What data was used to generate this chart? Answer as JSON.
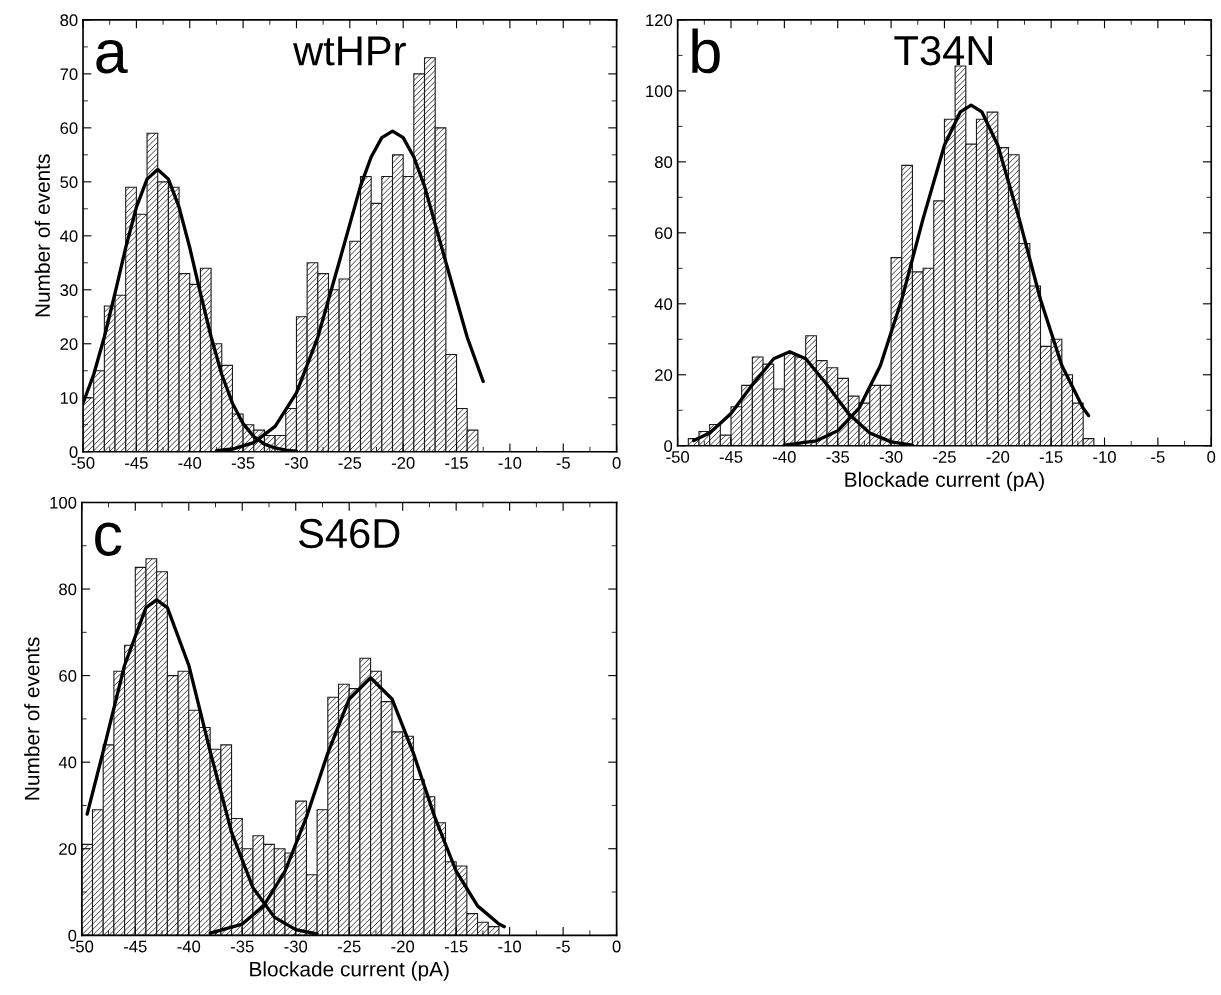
{
  "chart_data": [
    {
      "type": "histogram",
      "title": "wtHPr",
      "ylabel": "Number of events",
      "annotations": [
        "a"
      ],
      "color": "#1a1a1a",
      "bins": [
        -50,
        -49,
        -48,
        -47,
        -46,
        -45,
        -44,
        -43,
        -42,
        -41,
        -40,
        -39,
        -38,
        -37,
        -36,
        -35,
        -34,
        -33,
        -32,
        -31,
        -30,
        -29,
        -28,
        -27,
        -26,
        -25,
        -24,
        -23,
        -22,
        -21,
        -20,
        -19,
        -18,
        -17,
        -16,
        -15,
        -14,
        -13
      ],
      "values": [
        10,
        15,
        27,
        29,
        49,
        44,
        59,
        50,
        49,
        33,
        31,
        34,
        20,
        16,
        7,
        5,
        4,
        3,
        3,
        8,
        25,
        35,
        33,
        30,
        32,
        39,
        51,
        46,
        51,
        55,
        51,
        70,
        73,
        60,
        18,
        8,
        4
      ],
      "series": [
        {
          "type": "line",
          "color": "#000000",
          "x": [
            -50,
            -49,
            -48,
            -47,
            -46,
            -45,
            -44,
            -43,
            -42,
            -41,
            -40,
            -39,
            -38,
            -37,
            -36,
            -35,
            -34,
            -33,
            -32,
            -31,
            -30
          ],
          "values": [
            9.0,
            14.3,
            21.3,
            29.4,
            37.8,
            45.3,
            50.5,
            52.3,
            50.5,
            45.3,
            37.8,
            29.4,
            21.3,
            14.3,
            9.0,
            5.2,
            2.8,
            1.4,
            0.7,
            0.3,
            0.1
          ]
        },
        {
          "type": "line",
          "color": "#000000",
          "x": [
            -37.5,
            -36,
            -34,
            -32,
            -30,
            -28,
            -26,
            -24,
            -23,
            -22,
            -21,
            -20,
            -19,
            -18,
            -16,
            -14,
            -12.5
          ],
          "values": [
            0.2,
            0.5,
            1.7,
            4.7,
            10.9,
            21.2,
            35.1,
            49.2,
            54.6,
            58.2,
            59.4,
            58.2,
            54.6,
            49.2,
            35.1,
            21.2,
            13.0
          ]
        }
      ],
      "xlim": [
        -50,
        0
      ],
      "xticks": [
        -50,
        -45,
        -40,
        -35,
        -30,
        -25,
        -20,
        -15,
        -10,
        -5,
        0
      ],
      "ylim": [
        0,
        80
      ],
      "yticks": [
        0,
        10,
        20,
        30,
        40,
        50,
        60,
        70,
        80
      ],
      "grid": false
    },
    {
      "type": "histogram",
      "title": "T34N",
      "xlabel": "Blockade current (pA)",
      "annotations": [
        "b"
      ],
      "color": "#1a1a1a",
      "bins": [
        -49,
        -48,
        -47,
        -46,
        -45,
        -44,
        -43,
        -42,
        -41,
        -40,
        -39,
        -38,
        -37,
        -36,
        -35,
        -34,
        -33,
        -32,
        -31,
        -30,
        -29,
        -28,
        -27,
        -26,
        -25,
        -24,
        -23,
        -22,
        -21,
        -20,
        -19,
        -18,
        -17,
        -16,
        -15,
        -14,
        -13,
        -12,
        -11
      ],
      "values": [
        2,
        4,
        6,
        3,
        11,
        17,
        25,
        23,
        16,
        26,
        25,
        31,
        24,
        22,
        19,
        14,
        12,
        17,
        17,
        53,
        79,
        49,
        50,
        69,
        92,
        107,
        85,
        92,
        94,
        84,
        82,
        57,
        45,
        28,
        30,
        20,
        12,
        2
      ],
      "series": [
        {
          "type": "line",
          "color": "#000000",
          "x": [
            -48.5,
            -47,
            -45,
            -43,
            -41,
            -39.5,
            -38,
            -36,
            -34,
            -32,
            -30,
            -28
          ],
          "values": [
            1.5,
            3.6,
            9.1,
            17.2,
            24.5,
            26.5,
            24.5,
            17.2,
            9.1,
            3.6,
            1.1,
            0.2
          ]
        },
        {
          "type": "line",
          "color": "#000000",
          "x": [
            -40,
            -37,
            -35,
            -33,
            -31,
            -29,
            -27,
            -25,
            -23.5,
            -22.5,
            -21.5,
            -20,
            -18,
            -16,
            -14,
            -12,
            -11.5
          ],
          "values": [
            0.2,
            1.4,
            4.2,
            10.6,
            22.6,
            41.2,
            64.0,
            84.7,
            94.1,
            96,
            94.1,
            84.7,
            64.0,
            41.2,
            22.6,
            10.6,
            8.5
          ]
        }
      ],
      "xlim": [
        -50,
        0
      ],
      "xticks": [
        -50,
        -45,
        -40,
        -35,
        -30,
        -25,
        -20,
        -15,
        -10,
        -5,
        0
      ],
      "ylim": [
        0,
        120
      ],
      "yticks": [
        0,
        20,
        40,
        60,
        80,
        100,
        120
      ],
      "grid": false
    },
    {
      "type": "histogram",
      "title": "S46D",
      "xlabel": "Blockade current (pA)",
      "ylabel": "Number of events",
      "annotations": [
        "c"
      ],
      "color": "#1a1a1a",
      "bins": [
        -50,
        -49,
        -48,
        -47,
        -46,
        -45,
        -44,
        -43,
        -42,
        -41,
        -40,
        -39,
        -38,
        -37,
        -36,
        -35,
        -34,
        -33,
        -32,
        -31,
        -30,
        -29,
        -28,
        -27,
        -26,
        -25,
        -24,
        -23,
        -22,
        -21,
        -20,
        -19,
        -18,
        -17,
        -16,
        -15,
        -14,
        -13,
        -12,
        -11
      ],
      "values": [
        21,
        29,
        44,
        61,
        67,
        85,
        87,
        84,
        60,
        61,
        52,
        48,
        43,
        44,
        27,
        20,
        23,
        21,
        20,
        19,
        31,
        14,
        29,
        55,
        58,
        57,
        64,
        61,
        54,
        47,
        46,
        36,
        32,
        26,
        17,
        16,
        5,
        3,
        2
      ],
      "series": [
        {
          "type": "line",
          "color": "#000000",
          "x": [
            -49.5,
            -48,
            -46,
            -44,
            -43,
            -42,
            -40,
            -38,
            -36,
            -34,
            -32,
            -30,
            -28
          ],
          "values": [
            28,
            42.5,
            62.4,
            75.7,
            77.5,
            75.7,
            62.4,
            42.5,
            23.8,
            11.0,
            4.2,
            1.3,
            0.3
          ]
        },
        {
          "type": "line",
          "color": "#000000",
          "x": [
            -38,
            -35,
            -33,
            -31,
            -29,
            -27,
            -25,
            -23,
            -21,
            -19,
            -17,
            -15,
            -13,
            -11,
            -10.5
          ],
          "values": [
            0.5,
            2.6,
            6.8,
            14.8,
            27.3,
            42.1,
            54.6,
            59.5,
            54.6,
            42.1,
            27.3,
            14.8,
            6.8,
            2.6,
            2.0
          ]
        }
      ],
      "xlim": [
        -50,
        0
      ],
      "xticks": [
        -50,
        -45,
        -40,
        -35,
        -30,
        -25,
        -20,
        -15,
        -10,
        -5,
        0
      ],
      "ylim": [
        0,
        100
      ],
      "yticks": [
        0,
        20,
        40,
        60,
        80,
        100
      ],
      "grid": false
    }
  ]
}
